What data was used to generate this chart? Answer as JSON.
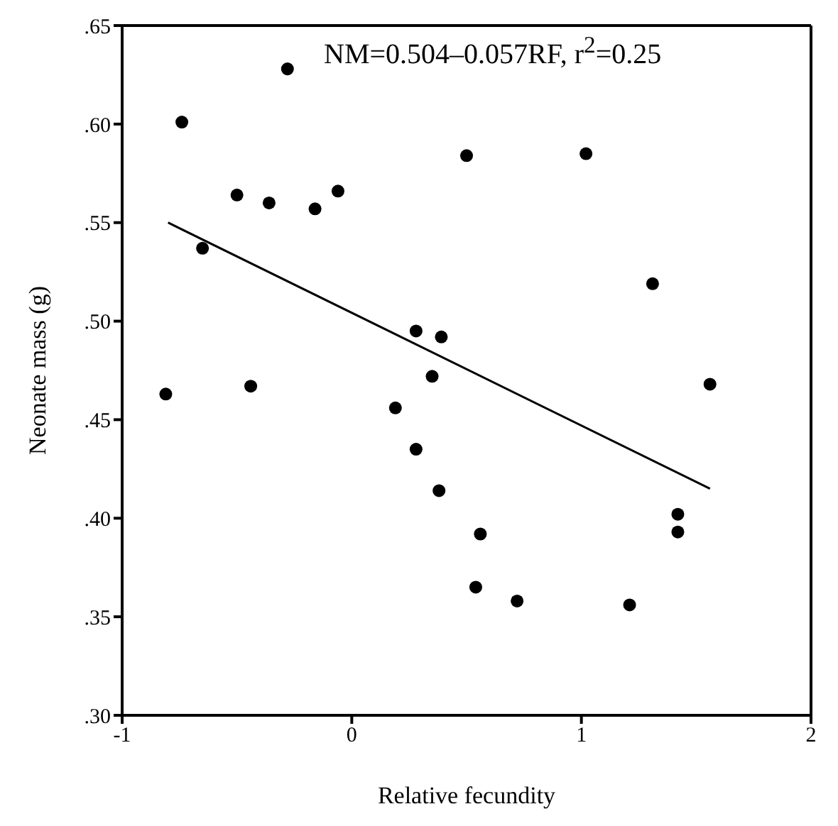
{
  "chart_data": {
    "type": "scatter",
    "xlabel": "Relative fecundity",
    "ylabel": "Neonate mass (g)",
    "annotations": [
      "NM=0.504–0.057RF, r$^{2}$=0.25"
    ],
    "xlim": [
      -1,
      2
    ],
    "xticks": [
      -1,
      0,
      1,
      2
    ],
    "ylim": [
      0.3,
      0.65
    ],
    "yticks": [
      {
        "value": 0.3,
        "label": ".30"
      },
      {
        "value": 0.35,
        "label": ".35"
      },
      {
        "value": 0.4,
        "label": ".40"
      },
      {
        "value": 0.45,
        "label": ".45"
      },
      {
        "value": 0.5,
        "label": ".50"
      },
      {
        "value": 0.55,
        "label": ".55"
      },
      {
        "value": 0.6,
        "label": ".60"
      },
      {
        "value": 0.65,
        "label": ".65"
      }
    ],
    "marker": "circle",
    "series": [
      {
        "color": "#000000",
        "x": [
          -0.81,
          -0.74,
          -0.28,
          -0.65,
          -0.5,
          -0.36,
          -0.16,
          -0.06,
          0.5,
          1.02,
          -0.44,
          0.28,
          0.39,
          0.35,
          0.19,
          0.28,
          0.38,
          0.56,
          0.54,
          0.72,
          1.21,
          1.31,
          1.42,
          1.42,
          1.56
        ],
        "values": [
          0.463,
          0.601,
          0.628,
          0.537,
          0.564,
          0.56,
          0.557,
          0.566,
          0.584,
          0.585,
          0.467,
          0.495,
          0.492,
          0.472,
          0.456,
          0.435,
          0.414,
          0.392,
          0.365,
          0.358,
          0.356,
          0.519,
          0.402,
          0.393,
          0.468
        ]
      },
      {
        "type": "line",
        "marker": "none",
        "color": "#000000",
        "x": [
          -0.8,
          1.56
        ],
        "values": [
          0.55,
          0.415
        ]
      }
    ]
  }
}
